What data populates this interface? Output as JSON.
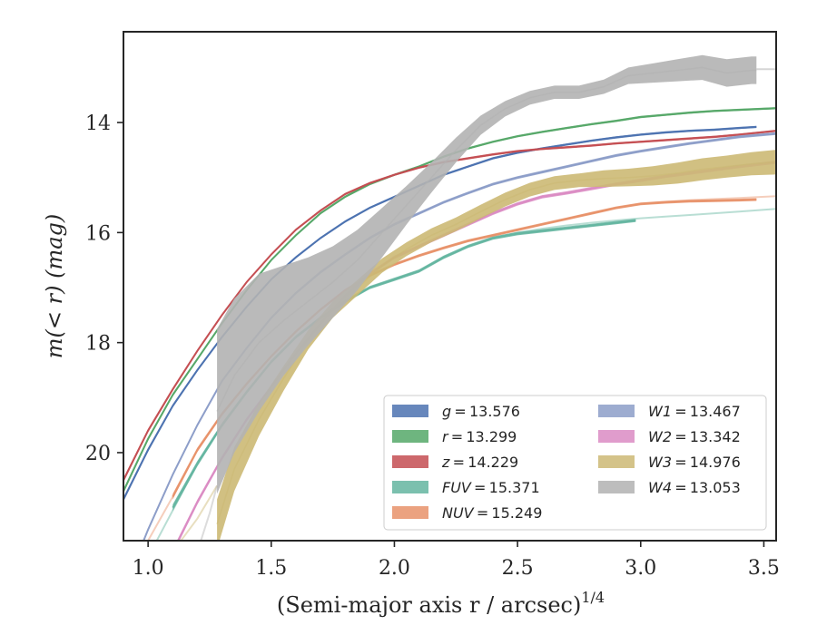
{
  "chart_data": {
    "type": "line",
    "xlabel": "(Semi-major axis r / arcsec)",
    "xlabel_exponent": "1/4",
    "ylabel": "m(< r) (mag)",
    "xlim": [
      0.9,
      3.55
    ],
    "ylim": [
      21.6,
      12.35
    ],
    "y_inverted": true,
    "grid": false,
    "legend_position": "lower-right",
    "x_ticks": [
      1.0,
      1.5,
      2.0,
      2.5,
      3.0,
      3.5
    ],
    "x_tick_labels": [
      "1.0",
      "1.5",
      "2.0",
      "2.5",
      "3.0",
      "3.5"
    ],
    "y_ticks": [
      14,
      16,
      18,
      20
    ],
    "y_tick_labels": [
      "14",
      "16",
      "18",
      "20"
    ],
    "series": [
      {
        "name": "g = 13.576",
        "band": "g",
        "value_text": "13.576",
        "color": "#4c72b0",
        "kind": "band",
        "x": [
          0.9,
          1.0,
          1.1,
          1.2,
          1.3,
          1.4,
          1.5,
          1.6,
          1.7,
          1.8,
          1.9,
          2.0,
          2.1,
          2.2,
          2.3,
          2.4,
          2.5,
          2.6,
          2.7,
          2.8,
          2.9,
          3.0,
          3.1,
          3.2,
          3.3,
          3.4,
          3.47
        ],
        "y": [
          20.85,
          19.95,
          19.15,
          18.5,
          17.9,
          17.35,
          16.85,
          16.45,
          16.1,
          15.8,
          15.55,
          15.35,
          15.15,
          14.95,
          14.8,
          14.65,
          14.55,
          14.47,
          14.4,
          14.33,
          14.27,
          14.22,
          14.18,
          14.15,
          14.13,
          14.1,
          14.08
        ],
        "width": [
          0.08,
          0.07,
          0.06,
          0.05,
          0.05,
          0.04,
          0.04,
          0.04,
          0.04,
          0.04,
          0.04,
          0.04,
          0.04,
          0.04,
          0.04,
          0.04,
          0.04,
          0.04,
          0.04,
          0.04,
          0.04,
          0.04,
          0.04,
          0.04,
          0.04,
          0.04,
          0.04
        ]
      },
      {
        "name": "r = 13.299",
        "band": "r",
        "value_text": "13.299",
        "color": "#55a868",
        "kind": "band",
        "x": [
          0.9,
          1.0,
          1.1,
          1.2,
          1.3,
          1.4,
          1.5,
          1.6,
          1.7,
          1.8,
          1.9,
          2.0,
          2.1,
          2.2,
          2.3,
          2.4,
          2.5,
          2.6,
          2.7,
          2.8,
          2.9,
          3.0,
          3.1,
          3.2,
          3.3,
          3.4,
          3.55
        ],
        "y": [
          20.7,
          19.75,
          18.95,
          18.3,
          17.65,
          17.05,
          16.5,
          16.05,
          15.65,
          15.35,
          15.12,
          14.95,
          14.8,
          14.62,
          14.47,
          14.35,
          14.25,
          14.17,
          14.1,
          14.03,
          13.97,
          13.9,
          13.86,
          13.82,
          13.79,
          13.77,
          13.74
        ],
        "width": [
          0.08,
          0.07,
          0.06,
          0.05,
          0.05,
          0.04,
          0.04,
          0.04,
          0.04,
          0.04,
          0.04,
          0.04,
          0.04,
          0.04,
          0.04,
          0.04,
          0.04,
          0.04,
          0.04,
          0.04,
          0.04,
          0.04,
          0.04,
          0.04,
          0.04,
          0.04,
          0.04
        ]
      },
      {
        "name": "z = 14.229",
        "band": "z",
        "value_text": "14.229",
        "color": "#c44e52",
        "kind": "band",
        "x": [
          0.9,
          1.0,
          1.1,
          1.2,
          1.3,
          1.4,
          1.5,
          1.6,
          1.7,
          1.8,
          1.9,
          2.0,
          2.1,
          2.2,
          2.3,
          2.4,
          2.5,
          2.6,
          2.7,
          2.8,
          2.9,
          3.0,
          3.1,
          3.2,
          3.3,
          3.4,
          3.55
        ],
        "y": [
          20.5,
          19.6,
          18.85,
          18.15,
          17.5,
          16.9,
          16.4,
          15.95,
          15.6,
          15.3,
          15.1,
          14.95,
          14.82,
          14.72,
          14.65,
          14.58,
          14.52,
          14.48,
          14.45,
          14.42,
          14.38,
          14.35,
          14.32,
          14.29,
          14.26,
          14.22,
          14.15
        ],
        "width": [
          0.08,
          0.07,
          0.06,
          0.05,
          0.05,
          0.04,
          0.04,
          0.04,
          0.04,
          0.04,
          0.04,
          0.04,
          0.04,
          0.04,
          0.04,
          0.04,
          0.04,
          0.04,
          0.04,
          0.04,
          0.04,
          0.04,
          0.04,
          0.04,
          0.04,
          0.04,
          0.04
        ]
      },
      {
        "name": "FUV = 15.371",
        "band": "FUV",
        "value_text": "15.371",
        "color": "#64b5a0",
        "kind": "band",
        "x": [
          1.1,
          1.2,
          1.3,
          1.4,
          1.5,
          1.6,
          1.7,
          1.8,
          1.9,
          2.0,
          2.1,
          2.2,
          2.3,
          2.4,
          2.5,
          2.6,
          2.7,
          2.8,
          2.9,
          2.98
        ],
        "y": [
          21.0,
          20.2,
          19.5,
          18.9,
          18.35,
          17.9,
          17.55,
          17.25,
          17.0,
          16.85,
          16.7,
          16.45,
          16.25,
          16.1,
          16.02,
          15.97,
          15.92,
          15.87,
          15.82,
          15.78
        ],
        "width": [
          0.12,
          0.1,
          0.08,
          0.07,
          0.06,
          0.06,
          0.06,
          0.06,
          0.06,
          0.06,
          0.06,
          0.06,
          0.06,
          0.06,
          0.06,
          0.06,
          0.06,
          0.06,
          0.06,
          0.06
        ],
        "ext_x": [
          0.9,
          1.0,
          1.1,
          1.2,
          1.3,
          1.4,
          1.5,
          1.6,
          1.7,
          1.8,
          1.9,
          2.0,
          2.1,
          2.2,
          2.3,
          2.4,
          2.5,
          2.6,
          2.7,
          2.8,
          2.9,
          3.0,
          3.1,
          3.2,
          3.3,
          3.4,
          3.55
        ],
        "ext_y": [
          22.8,
          21.9,
          21.05,
          20.2,
          19.5,
          18.9,
          18.35,
          17.9,
          17.55,
          17.25,
          17.0,
          16.85,
          16.7,
          16.45,
          16.25,
          16.1,
          16.0,
          15.93,
          15.87,
          15.82,
          15.78,
          15.74,
          15.71,
          15.68,
          15.65,
          15.62,
          15.57
        ]
      },
      {
        "name": "NUV = 15.249",
        "band": "NUV",
        "value_text": "15.249",
        "color": "#e8926a",
        "kind": "band",
        "x": [
          1.1,
          1.2,
          1.3,
          1.4,
          1.5,
          1.6,
          1.7,
          1.8,
          1.9,
          2.0,
          2.1,
          2.2,
          2.3,
          2.4,
          2.5,
          2.6,
          2.7,
          2.8,
          2.9,
          3.0,
          3.1,
          3.2,
          3.3,
          3.4,
          3.47
        ],
        "y": [
          20.8,
          19.95,
          19.3,
          18.75,
          18.25,
          17.8,
          17.4,
          17.05,
          16.78,
          16.58,
          16.42,
          16.28,
          16.15,
          16.05,
          15.95,
          15.85,
          15.75,
          15.65,
          15.55,
          15.48,
          15.45,
          15.43,
          15.42,
          15.41,
          15.4
        ],
        "width": [
          0.1,
          0.08,
          0.07,
          0.06,
          0.05,
          0.05,
          0.05,
          0.05,
          0.05,
          0.05,
          0.05,
          0.05,
          0.05,
          0.05,
          0.05,
          0.05,
          0.05,
          0.05,
          0.05,
          0.05,
          0.05,
          0.05,
          0.05,
          0.05,
          0.05
        ],
        "ext_x": [
          0.9,
          1.0,
          1.1,
          1.2,
          1.3,
          1.4,
          1.5,
          1.6,
          1.7,
          1.8,
          1.9,
          2.0,
          2.1,
          2.2,
          2.3,
          2.4,
          2.5,
          2.6,
          2.7,
          2.8,
          2.9,
          3.0,
          3.1,
          3.2,
          3.3,
          3.4,
          3.55
        ],
        "ext_y": [
          22.5,
          21.6,
          20.8,
          19.95,
          19.3,
          18.75,
          18.25,
          17.8,
          17.4,
          17.05,
          16.78,
          16.58,
          16.42,
          16.28,
          16.15,
          16.05,
          15.95,
          15.85,
          15.75,
          15.65,
          15.55,
          15.48,
          15.44,
          15.41,
          15.39,
          15.37,
          15.34
        ]
      },
      {
        "name": "W1 = 13.467",
        "band": "W1",
        "value_text": "13.467",
        "color": "#8c9dc8",
        "kind": "band",
        "x": [
          0.9,
          1.0,
          1.1,
          1.2,
          1.3,
          1.4,
          1.5,
          1.6,
          1.7,
          1.8,
          1.9,
          2.0,
          2.1,
          2.2,
          2.3,
          2.4,
          2.5,
          2.6,
          2.7,
          2.8,
          2.9,
          3.0,
          3.1,
          3.2,
          3.3,
          3.4,
          3.55
        ],
        "y": [
          22.5,
          21.4,
          20.4,
          19.5,
          18.7,
          18.1,
          17.55,
          17.1,
          16.72,
          16.4,
          16.1,
          15.85,
          15.65,
          15.45,
          15.28,
          15.12,
          15.0,
          14.9,
          14.8,
          14.7,
          14.6,
          14.52,
          14.45,
          14.38,
          14.32,
          14.26,
          14.2
        ],
        "width": [
          0.08,
          0.07,
          0.06,
          0.05,
          0.05,
          0.05,
          0.05,
          0.05,
          0.05,
          0.05,
          0.05,
          0.05,
          0.05,
          0.05,
          0.05,
          0.05,
          0.05,
          0.05,
          0.05,
          0.05,
          0.05,
          0.05,
          0.05,
          0.05,
          0.05,
          0.05,
          0.05
        ]
      },
      {
        "name": "W2 = 13.342",
        "band": "W2",
        "value_text": "13.342",
        "color": "#da8bc3",
        "kind": "band",
        "x": [
          1.1,
          1.2,
          1.3,
          1.4,
          1.5,
          1.6,
          1.7,
          1.8,
          1.9,
          2.0,
          2.1,
          2.2,
          2.3,
          2.4,
          2.5,
          2.6,
          2.7,
          2.8,
          2.9,
          3.0,
          3.1,
          3.2,
          3.3,
          3.4,
          3.55
        ],
        "y": [
          21.8,
          20.9,
          20.1,
          19.4,
          18.8,
          18.2,
          17.65,
          17.15,
          16.75,
          16.45,
          16.25,
          16.05,
          15.85,
          15.65,
          15.48,
          15.35,
          15.28,
          15.2,
          15.12,
          15.05,
          14.98,
          14.92,
          14.86,
          14.8,
          14.72
        ],
        "width": [
          0.1,
          0.09,
          0.08,
          0.07,
          0.06,
          0.06,
          0.06,
          0.06,
          0.06,
          0.06,
          0.06,
          0.06,
          0.06,
          0.06,
          0.06,
          0.06,
          0.06,
          0.06,
          0.06,
          0.06,
          0.06,
          0.06,
          0.06,
          0.06,
          0.06
        ]
      },
      {
        "name": "W3 = 14.976",
        "band": "W3",
        "value_text": "14.976",
        "color": "#ccb974",
        "kind": "band",
        "x": [
          1.28,
          1.35,
          1.45,
          1.55,
          1.65,
          1.75,
          1.85,
          1.95,
          2.05,
          2.15,
          2.25,
          2.35,
          2.45,
          2.55,
          2.65,
          2.75,
          2.85,
          2.95,
          3.05,
          3.15,
          3.25,
          3.35,
          3.45,
          3.55
        ],
        "y": [
          21.3,
          20.3,
          19.4,
          18.65,
          17.95,
          17.4,
          17.0,
          16.6,
          16.3,
          16.05,
          15.85,
          15.62,
          15.4,
          15.22,
          15.1,
          15.05,
          15.02,
          15.0,
          14.97,
          14.92,
          14.85,
          14.8,
          14.75,
          14.72
        ],
        "width": [
          0.9,
          0.8,
          0.6,
          0.45,
          0.35,
          0.3,
          0.28,
          0.26,
          0.25,
          0.25,
          0.25,
          0.25,
          0.25,
          0.25,
          0.25,
          0.25,
          0.3,
          0.32,
          0.35,
          0.38,
          0.4,
          0.4,
          0.42,
          0.45
        ],
        "ext_x": [
          0.9,
          1.0,
          1.1,
          1.2,
          1.28
        ],
        "ext_y": [
          23.5,
          22.6,
          21.8,
          21.2,
          20.6
        ]
      },
      {
        "name": "W4 = 13.053",
        "band": "W4",
        "value_text": "13.053",
        "color": "#b2b2b2",
        "kind": "band",
        "x": [
          1.28,
          1.35,
          1.45,
          1.55,
          1.65,
          1.75,
          1.85,
          1.95,
          2.05,
          2.15,
          2.25,
          2.35,
          2.45,
          2.55,
          2.65,
          2.75,
          2.85,
          2.95,
          3.05,
          3.15,
          3.25,
          3.35,
          3.45,
          3.47
        ],
        "y": [
          19.25,
          18.6,
          18.0,
          17.6,
          17.25,
          16.9,
          16.5,
          16.0,
          15.5,
          15.0,
          14.5,
          14.05,
          13.75,
          13.55,
          13.45,
          13.45,
          13.35,
          13.15,
          13.1,
          13.05,
          13.0,
          13.1,
          13.05,
          13.05
        ],
        "width": [
          3.0,
          2.8,
          2.5,
          2.0,
          1.6,
          1.3,
          1.1,
          0.9,
          0.7,
          0.55,
          0.45,
          0.35,
          0.28,
          0.25,
          0.24,
          0.24,
          0.26,
          0.3,
          0.35,
          0.4,
          0.45,
          0.5,
          0.5,
          0.5
        ],
        "ext_x": [
          1.15,
          1.2,
          1.25,
          1.28
        ],
        "ext_y": [
          22.5,
          21.8,
          21.1,
          20.6
        ],
        "ext2_x": [
          3.47,
          3.55
        ],
        "ext2_y": [
          13.03,
          13.03
        ]
      }
    ]
  }
}
